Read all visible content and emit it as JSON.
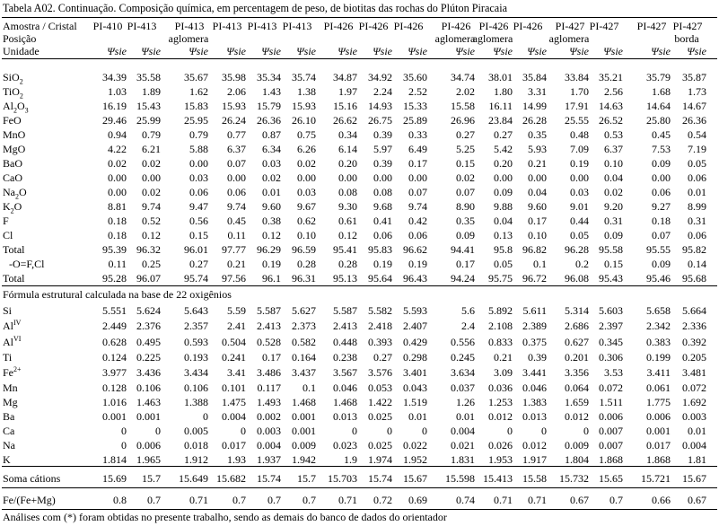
{
  "caption": "Tabela A02. Continuação. Composição química, em percentagem de peso, de biotitas das rochas do Plúton Piracaia",
  "header": {
    "row1_label": "Amostra / Cristal",
    "row2_label": "Posição",
    "row3_label": "Unidade",
    "columns": [
      {
        "sample": "PI-410",
        "pos": "",
        "unit": "Ψsie"
      },
      {
        "sample": "PI-413",
        "pos": "",
        "unit": "Ψsie"
      },
      {
        "sample": "PI-413",
        "pos": "aglomera",
        "unit": "Ψsie"
      },
      {
        "sample": "PI-413",
        "pos": "",
        "unit": "Ψsie"
      },
      {
        "sample": "PI-413",
        "pos": "",
        "unit": "Ψsie"
      },
      {
        "sample": "PI-413",
        "pos": "",
        "unit": "Ψsie"
      },
      {
        "sample": "PI-426",
        "pos": "",
        "unit": "Ψsie"
      },
      {
        "sample": "PI-426",
        "pos": "",
        "unit": "Ψsie"
      },
      {
        "sample": "PI-426",
        "pos": "",
        "unit": "Ψsie"
      },
      {
        "sample": "PI-426",
        "pos": "aglomera",
        "unit": "Ψsie"
      },
      {
        "sample": "PI-426",
        "pos": "aglomera",
        "unit": "Ψsie"
      },
      {
        "sample": "PI-426",
        "pos": "",
        "unit": "Ψsie"
      },
      {
        "sample": "PI-427",
        "pos": "aglomera",
        "unit": "Ψsie"
      },
      {
        "sample": "PI-427",
        "pos": "",
        "unit": "Ψsie"
      },
      {
        "sample": "PI-427",
        "pos": "",
        "unit": "Ψsie"
      },
      {
        "sample": "PI-427",
        "pos": "borda",
        "unit": "Ψsie"
      }
    ]
  },
  "oxides": [
    {
      "label": "SiO2",
      "values": [
        "34.39",
        "35.58",
        "35.67",
        "35.98",
        "35.34",
        "35.74",
        "34.87",
        "34.92",
        "35.60",
        "34.74",
        "38.01",
        "35.84",
        "33.84",
        "35.21",
        "35.79",
        "35.87"
      ]
    },
    {
      "label": "TiO2",
      "values": [
        "1.03",
        "1.89",
        "1.62",
        "2.06",
        "1.43",
        "1.38",
        "1.97",
        "2.24",
        "2.52",
        "2.02",
        "1.80",
        "3.31",
        "1.70",
        "2.56",
        "1.68",
        "1.73"
      ]
    },
    {
      "label": "Al2O3",
      "values": [
        "16.19",
        "15.43",
        "15.83",
        "15.93",
        "15.79",
        "15.93",
        "15.16",
        "14.93",
        "15.33",
        "15.58",
        "16.11",
        "14.99",
        "17.91",
        "14.63",
        "14.64",
        "14.67"
      ]
    },
    {
      "label": "FeO",
      "values": [
        "29.46",
        "25.99",
        "25.95",
        "26.24",
        "26.36",
        "26.10",
        "26.62",
        "26.75",
        "25.89",
        "26.96",
        "23.84",
        "26.28",
        "25.55",
        "26.52",
        "25.80",
        "26.36"
      ]
    },
    {
      "label": "MnO",
      "values": [
        "0.94",
        "0.79",
        "0.79",
        "0.77",
        "0.87",
        "0.75",
        "0.34",
        "0.39",
        "0.33",
        "0.27",
        "0.27",
        "0.35",
        "0.48",
        "0.53",
        "0.45",
        "0.54"
      ]
    },
    {
      "label": "MgO",
      "values": [
        "4.22",
        "6.21",
        "5.88",
        "6.37",
        "6.34",
        "6.26",
        "6.14",
        "5.97",
        "6.49",
        "5.25",
        "5.42",
        "5.93",
        "7.09",
        "6.37",
        "7.53",
        "7.19"
      ]
    },
    {
      "label": "BaO",
      "values": [
        "0.02",
        "0.02",
        "0.00",
        "0.07",
        "0.03",
        "0.02",
        "0.20",
        "0.39",
        "0.17",
        "0.15",
        "0.20",
        "0.21",
        "0.19",
        "0.10",
        "0.09",
        "0.05"
      ]
    },
    {
      "label": "CaO",
      "values": [
        "0.00",
        "0.00",
        "0.03",
        "0.00",
        "0.02",
        "0.00",
        "0.00",
        "0.00",
        "0.00",
        "0.02",
        "0.00",
        "0.00",
        "0.00",
        "0.04",
        "0.00",
        "0.06"
      ]
    },
    {
      "label": "Na2O",
      "values": [
        "0.00",
        "0.02",
        "0.06",
        "0.06",
        "0.01",
        "0.03",
        "0.08",
        "0.08",
        "0.07",
        "0.07",
        "0.09",
        "0.04",
        "0.03",
        "0.02",
        "0.06",
        "0.01"
      ]
    },
    {
      "label": "K2O",
      "values": [
        "8.81",
        "9.74",
        "9.47",
        "9.74",
        "9.60",
        "9.67",
        "9.30",
        "9.68",
        "9.74",
        "8.90",
        "9.88",
        "9.60",
        "9.01",
        "9.20",
        "9.27",
        "8.99"
      ]
    },
    {
      "label": "F",
      "values": [
        "0.18",
        "0.52",
        "0.56",
        "0.45",
        "0.38",
        "0.62",
        "0.61",
        "0.41",
        "0.42",
        "0.35",
        "0.04",
        "0.17",
        "0.44",
        "0.31",
        "0.18",
        "0.31"
      ]
    },
    {
      "label": "Cl",
      "values": [
        "0.18",
        "0.12",
        "0.15",
        "0.11",
        "0.12",
        "0.10",
        "0.12",
        "0.06",
        "0.06",
        "0.09",
        "0.13",
        "0.10",
        "0.05",
        "0.09",
        "0.07",
        "0.06"
      ]
    },
    {
      "label": "Total",
      "values": [
        "95.39",
        "96.32",
        "96.01",
        "97.77",
        "96.29",
        "96.59",
        "95.41",
        "95.83",
        "96.62",
        "94.41",
        "95.8",
        "96.82",
        "96.28",
        "95.58",
        "95.55",
        "95.82"
      ]
    },
    {
      "label": "-O=F,Cl",
      "values": [
        "0.11",
        "0.25",
        "0.27",
        "0.21",
        "0.19",
        "0.28",
        "0.28",
        "0.19",
        "0.19",
        "0.17",
        "0.05",
        "0.1",
        "0.2",
        "0.15",
        "0.09",
        "0.14"
      ]
    },
    {
      "label": "Total",
      "values": [
        "95.28",
        "96.07",
        "95.74",
        "97.56",
        "96.1",
        "96.31",
        "95.13",
        "95.64",
        "96.43",
        "94.24",
        "95.75",
        "96.72",
        "96.08",
        "95.43",
        "95.46",
        "95.68"
      ]
    }
  ],
  "formula_title": "Fórmula estrutural calculada na base de 22 oxigênios",
  "formula": [
    {
      "label": "Si",
      "values": [
        "5.551",
        "5.624",
        "5.643",
        "5.59",
        "5.587",
        "5.627",
        "5.587",
        "5.582",
        "5.593",
        "5.6",
        "5.892",
        "5.611",
        "5.314",
        "5.603",
        "5.658",
        "5.664"
      ]
    },
    {
      "label": "AlIV",
      "values": [
        "2.449",
        "2.376",
        "2.357",
        "2.41",
        "2.413",
        "2.373",
        "2.413",
        "2.418",
        "2.407",
        "2.4",
        "2.108",
        "2.389",
        "2.686",
        "2.397",
        "2.342",
        "2.336"
      ]
    },
    {
      "label": "AlVI",
      "values": [
        "0.628",
        "0.495",
        "0.593",
        "0.504",
        "0.528",
        "0.582",
        "0.448",
        "0.393",
        "0.429",
        "0.556",
        "0.833",
        "0.375",
        "0.627",
        "0.345",
        "0.383",
        "0.392"
      ]
    },
    {
      "label": "Ti",
      "values": [
        "0.124",
        "0.225",
        "0.193",
        "0.241",
        "0.17",
        "0.164",
        "0.238",
        "0.27",
        "0.298",
        "0.245",
        "0.21",
        "0.39",
        "0.201",
        "0.306",
        "0.199",
        "0.205"
      ]
    },
    {
      "label": "Fe2+",
      "values": [
        "3.977",
        "3.436",
        "3.434",
        "3.41",
        "3.486",
        "3.437",
        "3.567",
        "3.576",
        "3.401",
        "3.634",
        "3.09",
        "3.441",
        "3.356",
        "3.53",
        "3.411",
        "3.481"
      ]
    },
    {
      "label": "Mn",
      "values": [
        "0.128",
        "0.106",
        "0.106",
        "0.101",
        "0.117",
        "0.1",
        "0.046",
        "0.053",
        "0.043",
        "0.037",
        "0.036",
        "0.046",
        "0.064",
        "0.072",
        "0.061",
        "0.072"
      ]
    },
    {
      "label": "Mg",
      "values": [
        "1.016",
        "1.463",
        "1.388",
        "1.475",
        "1.493",
        "1.468",
        "1.468",
        "1.422",
        "1.519",
        "1.26",
        "1.253",
        "1.383",
        "1.659",
        "1.511",
        "1.775",
        "1.692"
      ]
    },
    {
      "label": "Ba",
      "values": [
        "0.001",
        "0.001",
        "0",
        "0.004",
        "0.002",
        "0.001",
        "0.013",
        "0.025",
        "0.01",
        "0.01",
        "0.012",
        "0.013",
        "0.012",
        "0.006",
        "0.006",
        "0.003"
      ]
    },
    {
      "label": "Ca",
      "values": [
        "0",
        "0",
        "0.005",
        "0",
        "0.003",
        "0.001",
        "0",
        "0",
        "0",
        "0.004",
        "0",
        "0",
        "0",
        "0.007",
        "0.001",
        "0.01"
      ]
    },
    {
      "label": "Na",
      "values": [
        "0",
        "0.006",
        "0.018",
        "0.017",
        "0.004",
        "0.009",
        "0.023",
        "0.025",
        "0.022",
        "0.021",
        "0.026",
        "0.012",
        "0.009",
        "0.007",
        "0.017",
        "0.004"
      ]
    },
    {
      "label": "K",
      "values": [
        "1.814",
        "1.965",
        "1.912",
        "1.93",
        "1.937",
        "1.942",
        "1.9",
        "1.974",
        "1.952",
        "1.831",
        "1.953",
        "1.917",
        "1.804",
        "1.868",
        "1.868",
        "1.81"
      ]
    }
  ],
  "soma": {
    "label": "Soma cátions",
    "values": [
      "15.69",
      "15.7",
      "15.649",
      "15.682",
      "15.74",
      "15.7",
      "15.703",
      "15.74",
      "15.67",
      "15.598",
      "15.413",
      "15.58",
      "15.732",
      "15.65",
      "15.721",
      "15.67"
    ]
  },
  "ratio": {
    "label": "Fe/(Fe+Mg)",
    "values": [
      "0.8",
      "0.7",
      "0.71",
      "0.7",
      "0.7",
      "0.7",
      "0.71",
      "0.72",
      "0.69",
      "0.74",
      "0.71",
      "0.71",
      "0.67",
      "0.7",
      "0.66",
      "0.67"
    ]
  },
  "footnote": "Análises com (*) foram obtidas no presente trabalho, sendo as demais do banco de dados do orientador"
}
